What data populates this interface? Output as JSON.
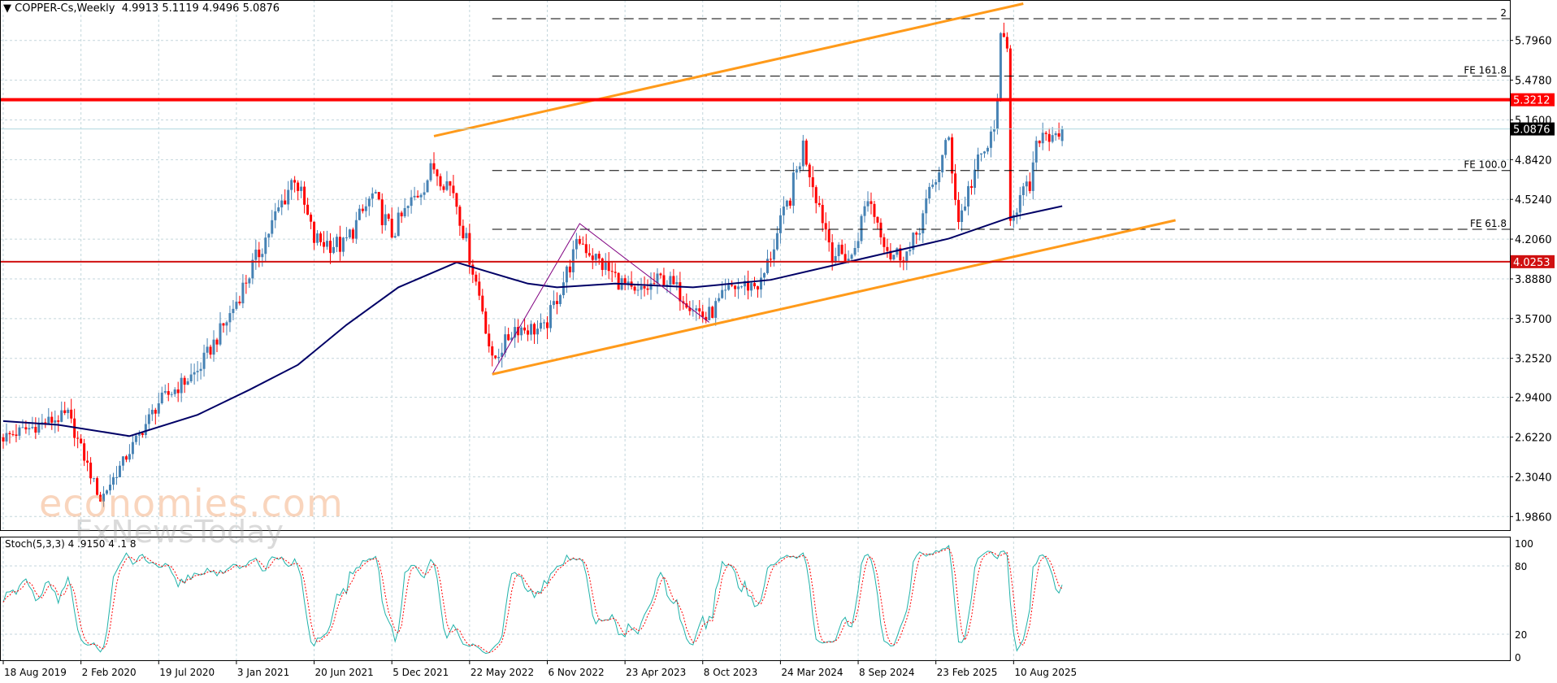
{
  "header": {
    "title": "COPPER-Cs,Weekly",
    "ohlc": "4.9913 5.1119 4.9496 5.0876"
  },
  "stoch_panel": {
    "label": "Stoch(5,3,3)",
    "values": "4 .9150 4 .1 8"
  },
  "watermark": {
    "brand": "economies.com",
    "sub": "FxNewsToday"
  },
  "colors": {
    "bull": "#4682b4",
    "bear": "#ff0000",
    "ma": "#000066",
    "channel": "#ff9a1a",
    "level_strong": "#ff0000",
    "level_weak": "#d01010",
    "zigzag": "#800080",
    "stoch_main": "#20b2aa",
    "stoch_signal": "#ff0000",
    "grid": "#c3d6dc"
  },
  "chart_data": {
    "type": "candlestick",
    "symbol": "COPPER-Cs",
    "timeframe": "Weekly",
    "last": {
      "open": 4.9913,
      "high": 5.1119,
      "low": 4.9496,
      "close": 5.0876,
      "label": "5.0876"
    },
    "price_ticks": [
      "5.7960",
      "5.4780",
      "5.1600",
      "4.8420",
      "4.5240",
      "4.2060",
      "3.8880",
      "3.5700",
      "3.2520",
      "2.9400",
      "2.6220",
      "2.3040",
      "1.9860"
    ],
    "date_ticks": [
      "18 Aug 2019",
      "2 Feb 2020",
      "19 Jul 2020",
      "3 Jan 2021",
      "20 Jun 2021",
      "5 Dec 2021",
      "22 May 2022",
      "6 Nov 2022",
      "23 Apr 2023",
      "8 Oct 2023",
      "24 Mar 2024",
      "8 Sep 2024",
      "23 Feb 2025",
      "10 Aug 2025"
    ],
    "grid": true,
    "price_pivots": [
      [
        "2019-08-18",
        2.62
      ],
      [
        "2020-01-05",
        2.8
      ],
      [
        "2020-03-15",
        2.12
      ],
      [
        "2020-07-19",
        2.9
      ],
      [
        "2020-10-11",
        3.15
      ],
      [
        "2020-12-20",
        3.6
      ],
      [
        "2021-02-21",
        4.1
      ],
      [
        "2021-05-09",
        4.72
      ],
      [
        "2021-06-20",
        4.2
      ],
      [
        "2021-08-22",
        4.15
      ],
      [
        "2021-10-24",
        4.55
      ],
      [
        "2021-12-05",
        4.25
      ],
      [
        "2022-03-06",
        4.78
      ],
      [
        "2022-04-17",
        4.6
      ],
      [
        "2022-06-19",
        3.65
      ],
      [
        "2022-07-10",
        3.22
      ],
      [
        "2022-08-28",
        3.5
      ],
      [
        "2022-10-30",
        3.48
      ],
      [
        "2023-01-15",
        4.2
      ],
      [
        "2023-02-19",
        4.05
      ],
      [
        "2023-05-14",
        3.75
      ],
      [
        "2023-07-16",
        3.9
      ],
      [
        "2023-10-15",
        3.57
      ],
      [
        "2023-12-10",
        3.82
      ],
      [
        "2024-02-11",
        3.85
      ],
      [
        "2024-04-14",
        4.55
      ],
      [
        "2024-05-12",
        4.95
      ],
      [
        "2024-07-14",
        4.1
      ],
      [
        "2024-08-25",
        4.05
      ],
      [
        "2024-09-29",
        4.55
      ],
      [
        "2024-11-17",
        4.08
      ],
      [
        "2024-12-29",
        4.1
      ],
      [
        "2025-03-23",
        5.0
      ],
      [
        "2025-04-13",
        4.35
      ],
      [
        "2025-05-18",
        4.75
      ],
      [
        "2025-06-29",
        5.05
      ],
      [
        "2025-07-13",
        5.75
      ],
      [
        "2025-07-27",
        5.7
      ],
      [
        "2025-08-03",
        4.42
      ],
      [
        "2025-09-14",
        4.62
      ],
      [
        "2025-10-05",
        5.05
      ],
      [
        "2025-11-23",
        5.0876
      ]
    ],
    "moving_average": [
      [
        "2019-08-18",
        2.75
      ],
      [
        "2019-12-15",
        2.72
      ],
      [
        "2020-05-17",
        2.63
      ],
      [
        "2020-10-11",
        2.8
      ],
      [
        "2021-01-31",
        3.0
      ],
      [
        "2021-05-16",
        3.2
      ],
      [
        "2021-08-29",
        3.52
      ],
      [
        "2021-12-19",
        3.82
      ],
      [
        "2022-04-24",
        4.02
      ],
      [
        "2022-06-26",
        3.95
      ],
      [
        "2022-09-25",
        3.85
      ],
      [
        "2022-11-27",
        3.82
      ],
      [
        "2023-04-02",
        3.85
      ],
      [
        "2023-09-17",
        3.82
      ],
      [
        "2024-03-03",
        3.88
      ],
      [
        "2024-08-25",
        4.03
      ],
      [
        "2025-03-23",
        4.21
      ],
      [
        "2025-08-03",
        4.38
      ],
      [
        "2025-11-23",
        4.47
      ]
    ],
    "horizontal_levels": [
      {
        "price": 5.3212,
        "label": "5.3212",
        "strong": true
      },
      {
        "price": 4.0253,
        "label": "4.0253",
        "strong": false
      }
    ],
    "trendlines": [
      {
        "from": [
          "2022-03-06",
          5.03
        ],
        "to": [
          "2025-08-31",
          6.09
        ]
      },
      {
        "from": [
          "2022-07-10",
          3.125
        ],
        "to": [
          "2026-07-26",
          4.357
        ]
      }
    ],
    "zigzag": [
      [
        "2022-07-10",
        3.125
      ],
      [
        "2023-01-15",
        4.33
      ],
      [
        "2023-10-22",
        3.54
      ]
    ],
    "fibonacci_expansion": {
      "start": "2022-07-10",
      "levels": [
        {
          "label": "2",
          "price": 5.97
        },
        {
          "label": "FE 161.8",
          "price": 5.51
        },
        {
          "label": "FE 100.0",
          "price": 4.755
        },
        {
          "label": "FE 61.8",
          "price": 4.285
        }
      ]
    },
    "stochastic": {
      "k": 5,
      "d": 3,
      "slowing": 3,
      "ticks": [
        "100",
        "80",
        "20",
        "0"
      ]
    }
  }
}
